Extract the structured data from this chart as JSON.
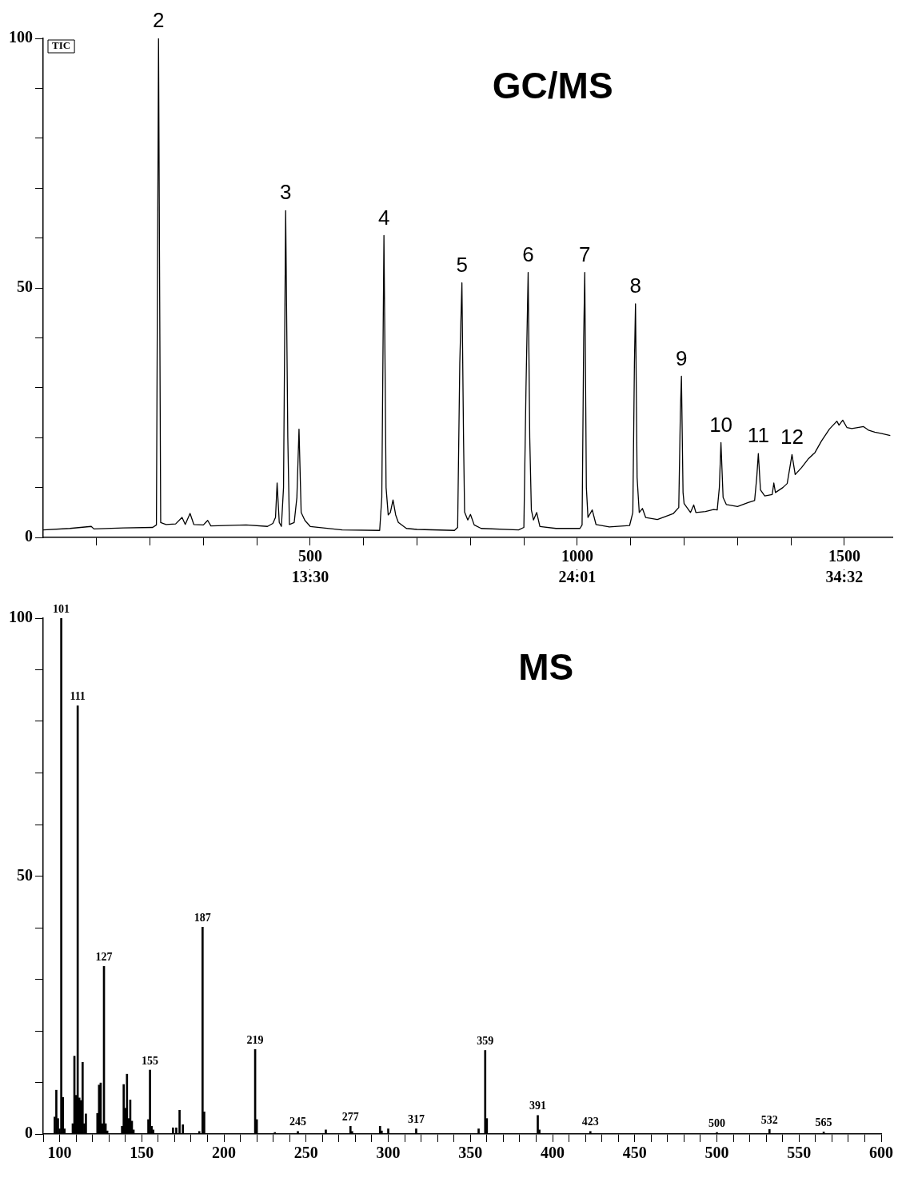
{
  "chart_data": [
    {
      "type": "line",
      "title": "GC/MS",
      "color": "#000000",
      "x": [
        0,
        50,
        90,
        95,
        150,
        205,
        212,
        216,
        220,
        230,
        248,
        260,
        266,
        275,
        282,
        300,
        308,
        314,
        380,
        420,
        430,
        435,
        438,
        442,
        446,
        450,
        454,
        458,
        461,
        470,
        475,
        479,
        483,
        490,
        500,
        560,
        630,
        634,
        638,
        642,
        646,
        650,
        655,
        660,
        665,
        680,
        700,
        770,
        776,
        780,
        784,
        787,
        789,
        795,
        800,
        807,
        820,
        890,
        900,
        904,
        908,
        911,
        914,
        918,
        924,
        930,
        960,
        1005,
        1009,
        1012,
        1014,
        1017,
        1020,
        1028,
        1035,
        1060,
        1098,
        1104,
        1107,
        1109,
        1112,
        1116,
        1122,
        1128,
        1150,
        1180,
        1190,
        1193,
        1195,
        1198,
        1200,
        1212,
        1218,
        1222,
        1240,
        1255,
        1262,
        1266,
        1269,
        1273,
        1279,
        1300,
        1320,
        1332,
        1336,
        1339,
        1343,
        1351,
        1365,
        1368,
        1371,
        1385,
        1393,
        1398,
        1402,
        1408,
        1420,
        1433,
        1445,
        1457,
        1472,
        1486,
        1490,
        1497,
        1505,
        1514,
        1525,
        1536,
        1545,
        1557,
        1570,
        1586
      ],
      "values": [
        1.5,
        1.8,
        2.2,
        1.7,
        1.9,
        2.0,
        2.5,
        100,
        3,
        2.6,
        2.7,
        4.0,
        2.6,
        4.8,
        2.6,
        2.5,
        3.4,
        2.3,
        2.5,
        2.2,
        2.8,
        4,
        10.9,
        3,
        2.2,
        10,
        65.5,
        20,
        2.6,
        3,
        8,
        21.7,
        5,
        3.4,
        2.2,
        1.5,
        1.4,
        8,
        60.5,
        10,
        4.5,
        5,
        7.5,
        4.5,
        3,
        1.8,
        1.6,
        1.4,
        2,
        35,
        51,
        20,
        5.1,
        3.5,
        4.6,
        2.5,
        1.8,
        1.5,
        2,
        30,
        53.1,
        20,
        5.5,
        3.5,
        5,
        2.2,
        1.8,
        1.8,
        2.5,
        40,
        53.1,
        10,
        4,
        5.5,
        2.6,
        2.1,
        2.4,
        5,
        35,
        46.8,
        12,
        5,
        5.8,
        4,
        3.6,
        4.8,
        6,
        25,
        32.3,
        9,
        6.8,
        5,
        6.5,
        5,
        5.2,
        5.6,
        5.5,
        10,
        19,
        8,
        6.6,
        6.2,
        7,
        7.4,
        12,
        16.8,
        9.5,
        8.3,
        8.6,
        10.9,
        9,
        10,
        10.8,
        14,
        16.6,
        12.6,
        14,
        15.8,
        17,
        19.3,
        21.7,
        23.3,
        22.5,
        23.5,
        22,
        21.8,
        22,
        22.2,
        21.5,
        21.1,
        20.8,
        20.4
      ],
      "xlim": [
        0,
        1590
      ],
      "xticks": [
        {
          "value": 100,
          "label": null
        },
        {
          "value": 200,
          "label": null
        },
        {
          "value": 300,
          "label": null
        },
        {
          "value": 400,
          "label": null
        },
        500,
        {
          "value": 600,
          "label": null
        },
        {
          "value": 700,
          "label": null
        },
        {
          "value": 800,
          "label": null
        },
        {
          "value": 900,
          "label": null
        },
        1000,
        {
          "value": 1100,
          "label": null
        },
        {
          "value": 1200,
          "label": null
        },
        {
          "value": 1300,
          "label": null
        },
        {
          "value": 1400,
          "label": null
        },
        1500
      ],
      "x2lim": [
        2.983,
        36.426
      ],
      "x2ticks": [
        {
          "value": 13.5,
          "label": "13:30"
        },
        {
          "value": 24.0167,
          "label": "24:01"
        },
        {
          "value": 34.5333,
          "label": "34:32"
        }
      ],
      "ylim": [
        0,
        100
      ],
      "yticks": [
        0,
        {
          "value": 10,
          "label": null
        },
        {
          "value": 20,
          "label": null
        },
        {
          "value": 30,
          "label": null
        },
        {
          "value": 40,
          "label": null
        },
        50,
        {
          "value": 60,
          "label": null
        },
        {
          "value": 70,
          "label": null
        },
        {
          "value": 80,
          "label": null
        },
        {
          "value": 90,
          "label": null
        },
        100
      ],
      "annotations": [
        "TIC",
        {
          "text": "2",
          "x": 216,
          "y": 100
        },
        {
          "text": "3",
          "x": 454,
          "y": 65.5
        },
        {
          "text": "4",
          "x": 638,
          "y": 60.5
        },
        {
          "text": "5",
          "x": 784,
          "y": 51
        },
        {
          "text": "6",
          "x": 908,
          "y": 53.1
        },
        {
          "text": "7",
          "x": 1014,
          "y": 53.1
        },
        {
          "text": "8",
          "x": 1109,
          "y": 46.8
        },
        {
          "text": "9",
          "x": 1195,
          "y": 32.3
        },
        {
          "text": "10",
          "x": 1269,
          "y": 19
        },
        {
          "text": "11",
          "x": 1339,
          "y": 16.8
        },
        {
          "text": "12",
          "x": 1402,
          "y": 16.6
        }
      ]
    },
    {
      "type": "bar",
      "title": "MS",
      "color": "#000000",
      "x": [
        97,
        98,
        99,
        100,
        101,
        102,
        103,
        108,
        109,
        110,
        111,
        112,
        113,
        114,
        115,
        116,
        123,
        124,
        125,
        126,
        127,
        128,
        129,
        138,
        139,
        140,
        141,
        142,
        143,
        144,
        145,
        154,
        155,
        156,
        157,
        169,
        171,
        173,
        175,
        185,
        187,
        188,
        219,
        220,
        231,
        245,
        262,
        277,
        278,
        295,
        296,
        300,
        317,
        355,
        359,
        360,
        391,
        392,
        423,
        500,
        532,
        565
      ],
      "values": [
        3.3,
        8.5,
        3,
        1,
        100,
        7.1,
        1,
        2,
        15.1,
        7.5,
        83,
        7,
        6.5,
        13.9,
        2,
        3.9,
        4,
        9.5,
        9.9,
        2,
        32.5,
        2,
        0.6,
        1.5,
        9.6,
        5,
        11.6,
        3,
        6.6,
        2.5,
        0.8,
        2.8,
        12.4,
        1.5,
        0.8,
        1.2,
        1.2,
        4.6,
        1.8,
        0.5,
        40.1,
        4.3,
        16.4,
        2.8,
        0.3,
        0.5,
        0.8,
        1.5,
        0.5,
        1.5,
        0.6,
        1,
        1,
        1,
        16.2,
        3,
        3.6,
        0.8,
        0.5,
        0.3,
        0.9,
        0.4
      ],
      "xlim": [
        90,
        600
      ],
      "xticks": [
        {
          "value": 90,
          "label": null
        },
        100,
        {
          "value": 110,
          "label": null
        },
        {
          "value": 120,
          "label": null
        },
        {
          "value": 130,
          "label": null
        },
        {
          "value": 140,
          "label": null
        },
        150,
        {
          "value": 160,
          "label": null
        },
        {
          "value": 170,
          "label": null
        },
        {
          "value": 180,
          "label": null
        },
        {
          "value": 190,
          "label": null
        },
        200,
        {
          "value": 210,
          "label": null
        },
        {
          "value": 220,
          "label": null
        },
        {
          "value": 230,
          "label": null
        },
        {
          "value": 240,
          "label": null
        },
        250,
        {
          "value": 260,
          "label": null
        },
        {
          "value": 270,
          "label": null
        },
        {
          "value": 280,
          "label": null
        },
        {
          "value": 290,
          "label": null
        },
        300,
        {
          "value": 310,
          "label": null
        },
        {
          "value": 320,
          "label": null
        },
        {
          "value": 330,
          "label": null
        },
        {
          "value": 340,
          "label": null
        },
        350,
        {
          "value": 360,
          "label": null
        },
        {
          "value": 370,
          "label": null
        },
        {
          "value": 380,
          "label": null
        },
        {
          "value": 390,
          "label": null
        },
        400,
        {
          "value": 410,
          "label": null
        },
        {
          "value": 420,
          "label": null
        },
        {
          "value": 430,
          "label": null
        },
        {
          "value": 440,
          "label": null
        },
        450,
        {
          "value": 460,
          "label": null
        },
        {
          "value": 470,
          "label": null
        },
        {
          "value": 480,
          "label": null
        },
        {
          "value": 490,
          "label": null
        },
        500,
        {
          "value": 510,
          "label": null
        },
        {
          "value": 520,
          "label": null
        },
        {
          "value": 530,
          "label": null
        },
        {
          "value": 540,
          "label": null
        },
        550,
        {
          "value": 560,
          "label": null
        },
        {
          "value": 570,
          "label": null
        },
        {
          "value": 580,
          "label": null
        },
        {
          "value": 590,
          "label": null
        },
        600
      ],
      "ylim": [
        0,
        100
      ],
      "yticks": [
        0,
        {
          "value": 10,
          "label": null
        },
        {
          "value": 20,
          "label": null
        },
        {
          "value": 30,
          "label": null
        },
        {
          "value": 40,
          "label": null
        },
        50,
        {
          "value": 60,
          "label": null
        },
        {
          "value": 70,
          "label": null
        },
        {
          "value": 80,
          "label": null
        },
        {
          "value": 90,
          "label": null
        },
        100
      ],
      "annotations": [
        {
          "text": "101",
          "x": 101,
          "y": 100
        },
        {
          "text": "111",
          "x": 111,
          "y": 83
        },
        {
          "text": "127",
          "x": 127,
          "y": 32.5
        },
        {
          "text": "155",
          "x": 155,
          "y": 12.4
        },
        {
          "text": "187",
          "x": 187,
          "y": 40.1
        },
        {
          "text": "219",
          "x": 219,
          "y": 16.4
        },
        {
          "text": "245",
          "x": 245,
          "y": 0.5
        },
        {
          "text": "277",
          "x": 277,
          "y": 1.5
        },
        {
          "text": "317",
          "x": 317,
          "y": 1
        },
        {
          "text": "359",
          "x": 359,
          "y": 16.2
        },
        {
          "text": "391",
          "x": 391,
          "y": 3.6
        },
        {
          "text": "423",
          "x": 423,
          "y": 0.5
        },
        {
          "text": "500",
          "x": 500,
          "y": 0.3
        },
        {
          "text": "532",
          "x": 532,
          "y": 0.9
        },
        {
          "text": "565",
          "x": 565,
          "y": 0.4
        }
      ]
    }
  ]
}
